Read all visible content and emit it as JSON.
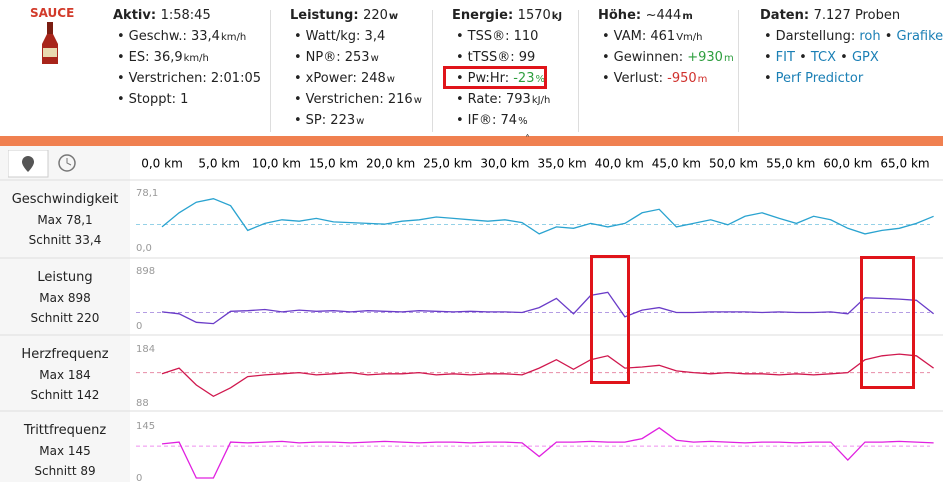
{
  "brand": "SAUCE",
  "stats": [
    {
      "title": "Aktiv:",
      "value": "1:58:45",
      "items": [
        {
          "label": "Geschw.:",
          "value": "33,4",
          "unit": "km/h"
        },
        {
          "label": "ES:",
          "value": "36,9",
          "unit": "km/h"
        },
        {
          "label": "Verstrichen:",
          "value": "2:01:05"
        },
        {
          "label": "Stoppt:",
          "value": "1"
        }
      ]
    },
    {
      "title": "Leistung:",
      "value": "220",
      "unit": "w",
      "items": [
        {
          "label": "Watt/kg:",
          "value": "3,4"
        },
        {
          "label": "NP®:",
          "value": "253",
          "unit": "w"
        },
        {
          "label": "xPower:",
          "value": "248",
          "unit": "w"
        },
        {
          "label": "Verstrichen:",
          "value": "216",
          "unit": "w"
        },
        {
          "label": "SP:",
          "value": "223",
          "unit": "w"
        }
      ]
    },
    {
      "title": "Energie:",
      "value": "1570",
      "unit": "kJ",
      "items": [
        {
          "label": "TSS®:",
          "value": "110"
        },
        {
          "label": "tTSS®:",
          "value": "99"
        },
        {
          "label": "Pw:Hr:",
          "value": "-23",
          "unit": "%",
          "color": "#2e9e3e"
        },
        {
          "label": "Rate:",
          "value": "793",
          "unit": "kJ/h"
        },
        {
          "label": "IF®:",
          "value": "74",
          "unit": "%"
        }
      ]
    },
    {
      "title": "Höhe:",
      "value": "~444",
      "unit": "m",
      "items": [
        {
          "label": "VAM:",
          "value": "461",
          "unit": "Vm/h"
        },
        {
          "label": "Gewinnen:",
          "value": "+930",
          "unit": "m",
          "color": "#2e9e3e"
        },
        {
          "label": "Verlust:",
          "value": "-950",
          "unit": "m",
          "color": "#d0312d"
        }
      ]
    }
  ],
  "data_info": {
    "title": "Daten:",
    "value": "7.127 Proben",
    "display_label": "Darstellung:",
    "display_links": [
      "roh",
      "Grafiken"
    ],
    "formats": [
      "FIT",
      "TCX",
      "GPX"
    ],
    "predictor": "Perf Predictor"
  },
  "x_axis": {
    "xlim": [
      0,
      65
    ],
    "xticks": [
      {
        "value": 0,
        "label": "0,0 km"
      },
      {
        "value": 5,
        "label": "5,0 km"
      },
      {
        "value": 10,
        "label": "10,0 km"
      },
      {
        "value": 15,
        "label": "15,0 km"
      },
      {
        "value": 20,
        "label": "20,0 km"
      },
      {
        "value": 25,
        "label": "25,0 km"
      },
      {
        "value": 30,
        "label": "30,0 km"
      },
      {
        "value": 35,
        "label": "35,0 km"
      },
      {
        "value": 40,
        "label": "40,0 km"
      },
      {
        "value": 45,
        "label": "45,0 km"
      },
      {
        "value": 50,
        "label": "50,0 km"
      },
      {
        "value": 55,
        "label": "55,0 km"
      },
      {
        "value": 60,
        "label": "60,0 km"
      },
      {
        "value": 65,
        "label": "65,0 km"
      }
    ],
    "x": [
      0,
      1.5,
      3,
      4.5,
      6,
      7.5,
      9,
      10.5,
      12,
      13.5,
      15,
      16.5,
      18,
      19.5,
      21,
      22.5,
      24,
      25.5,
      27,
      28.5,
      30,
      31.5,
      33,
      34.5,
      36,
      37.5,
      39,
      40.5,
      42,
      43.5,
      45,
      46.5,
      48,
      49.5,
      51,
      52.5,
      54,
      55.5,
      57,
      58.5,
      60,
      61.5,
      63,
      64.5,
      66,
      67.5
    ]
  },
  "rows": [
    {
      "name": "Geschwindigkeit",
      "color": "#2aa3d0",
      "max": {
        "value": 78.1,
        "label": "Max 78,1"
      },
      "avg": {
        "value": 33.4,
        "label": "Schnitt 33,4"
      },
      "ylim": [
        0,
        78.1
      ],
      "yticks": [
        {
          "value": 0,
          "label": "0,0"
        },
        {
          "value": 78.1,
          "label": "78,1"
        }
      ],
      "values": [
        30,
        50,
        65,
        70,
        60,
        25,
        35,
        40,
        38,
        42,
        37,
        36,
        35,
        34,
        38,
        40,
        44,
        42,
        40,
        38,
        40,
        36,
        20,
        30,
        28,
        35,
        30,
        35,
        50,
        55,
        30,
        35,
        40,
        33,
        45,
        50,
        42,
        35,
        45,
        40,
        28,
        20,
        25,
        28,
        35,
        45
      ]
    },
    {
      "name": "Leistung",
      "color": "#6a3cc8",
      "max": {
        "value": 898,
        "label": "Max 898"
      },
      "avg": {
        "value": 220,
        "label": "Schnitt 220"
      },
      "ylim": [
        0,
        898
      ],
      "yticks": [
        0,
        898
      ],
      "values": [
        230,
        200,
        60,
        40,
        240,
        250,
        270,
        230,
        260,
        240,
        250,
        230,
        250,
        240,
        230,
        250,
        240,
        230,
        240,
        230,
        230,
        220,
        300,
        450,
        200,
        500,
        550,
        150,
        260,
        300,
        220,
        220,
        230,
        230,
        230,
        220,
        230,
        220,
        220,
        230,
        200,
        460,
        450,
        440,
        420,
        200
      ]
    },
    {
      "name": "Herzfrequenz",
      "color": "#d0184e",
      "max": {
        "value": 184,
        "label": "Max 184"
      },
      "avg": {
        "value": 142,
        "label": "Schnitt 142"
      },
      "ylim": [
        88,
        184
      ],
      "yticks": [
        88,
        184
      ],
      "values": [
        140,
        150,
        120,
        100,
        115,
        135,
        138,
        140,
        142,
        138,
        140,
        142,
        138,
        140,
        140,
        142,
        138,
        140,
        138,
        140,
        140,
        138,
        150,
        165,
        148,
        165,
        172,
        150,
        152,
        155,
        145,
        142,
        140,
        142,
        140,
        140,
        138,
        140,
        138,
        140,
        142,
        165,
        172,
        175,
        172,
        150
      ]
    },
    {
      "name": "Trittfrequenz",
      "color": "#e020e0",
      "max": {
        "value": 145,
        "label": "Max 145"
      },
      "avg": {
        "value": 89,
        "label": "Schnitt 89"
      },
      "ylim": [
        0,
        145
      ],
      "yticks": [
        0,
        145
      ],
      "values": [
        95,
        100,
        0,
        0,
        100,
        98,
        100,
        102,
        98,
        100,
        100,
        98,
        100,
        102,
        100,
        98,
        100,
        100,
        98,
        100,
        100,
        98,
        60,
        100,
        100,
        102,
        100,
        100,
        110,
        140,
        105,
        100,
        102,
        100,
        98,
        100,
        100,
        98,
        100,
        100,
        50,
        100,
        100,
        102,
        100,
        98
      ]
    }
  ]
}
